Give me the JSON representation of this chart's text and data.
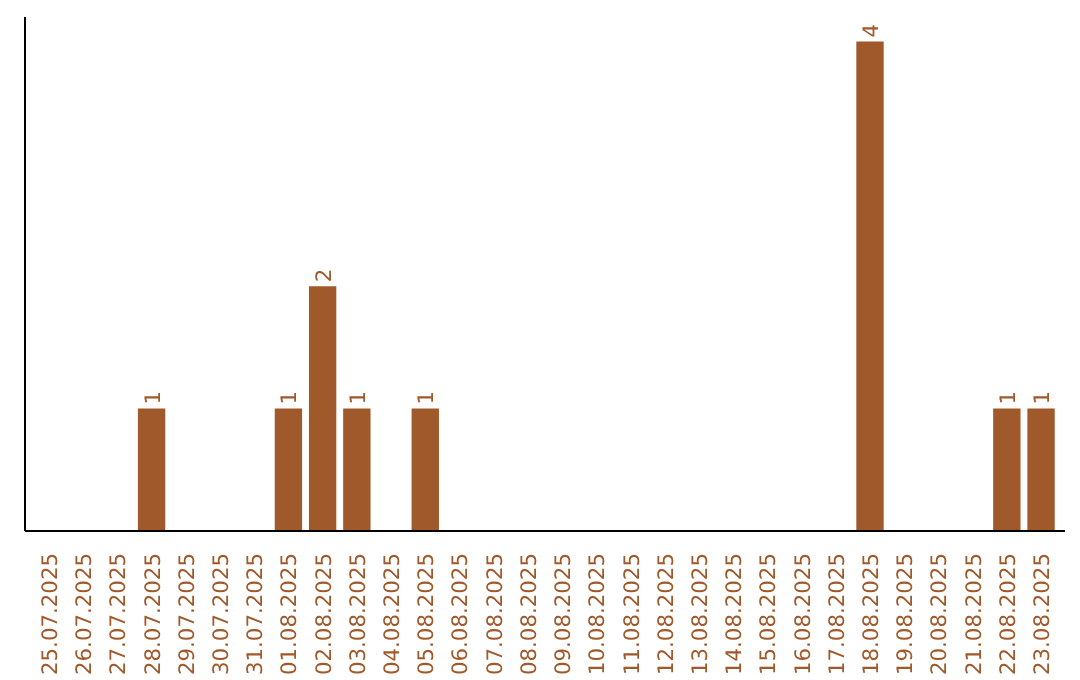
{
  "chart_data": {
    "type": "bar",
    "categories": [
      "25.07.2025",
      "26.07.2025",
      "27.07.2025",
      "28.07.2025",
      "29.07.2025",
      "30.07.2025",
      "31.07.2025",
      "01.08.2025",
      "02.08.2025",
      "03.08.2025",
      "04.08.2025",
      "05.08.2025",
      "06.08.2025",
      "07.08.2025",
      "08.08.2025",
      "09.08.2025",
      "10.08.2025",
      "11.08.2025",
      "12.08.2025",
      "13.08.2025",
      "14.08.2025",
      "15.08.2025",
      "16.08.2025",
      "17.08.2025",
      "18.08.2025",
      "19.08.2025",
      "20.08.2025",
      "21.08.2025",
      "22.08.2025",
      "23.08.2025"
    ],
    "values": [
      0,
      0,
      0,
      1,
      0,
      0,
      0,
      1,
      2,
      1,
      0,
      1,
      0,
      0,
      0,
      0,
      0,
      0,
      0,
      0,
      0,
      0,
      0,
      0,
      4,
      0,
      0,
      0,
      1,
      1
    ],
    "value_labels": [
      null,
      null,
      null,
      "1",
      null,
      null,
      null,
      "1",
      "2",
      "1",
      null,
      "1",
      null,
      null,
      null,
      null,
      null,
      null,
      null,
      null,
      null,
      null,
      null,
      null,
      "4",
      null,
      null,
      null,
      "1",
      "1"
    ],
    "color": "#a0592a",
    "grid": false,
    "tick_labels": "x"
  }
}
